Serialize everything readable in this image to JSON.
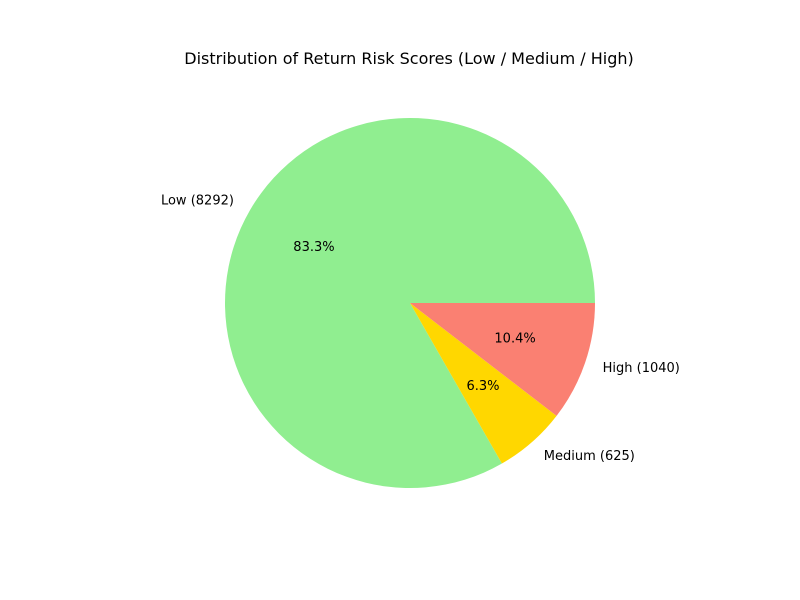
{
  "chart_data": {
    "type": "pie",
    "title": "Distribution of Return Risk Scores (Low / Medium / High)",
    "slices": [
      {
        "label": "Low (8292)",
        "value": 8292,
        "percent_label": "83.3%",
        "color": "#90ee90"
      },
      {
        "label": "Medium (625)",
        "value": 625,
        "percent_label": "6.3%",
        "color": "#ffd700"
      },
      {
        "label": "High (1040)",
        "value": 1040,
        "percent_label": "10.4%",
        "color": "#fa8072"
      }
    ],
    "start_angle": "0 degrees (3 o'clock), counterclockwise",
    "legend": "none"
  }
}
